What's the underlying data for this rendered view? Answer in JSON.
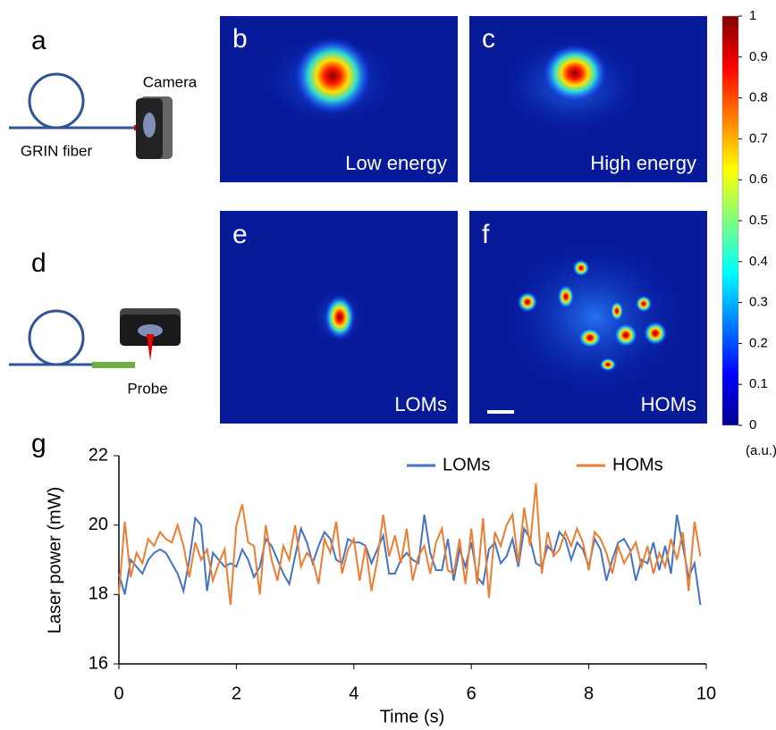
{
  "panels": {
    "a": {
      "label": "a",
      "camera": "Camera",
      "fiber": "GRIN fiber"
    },
    "b": {
      "label": "b",
      "caption": "Low energy"
    },
    "c": {
      "label": "c",
      "caption": "High energy"
    },
    "d": {
      "label": "d",
      "probe": "Probe"
    },
    "e": {
      "label": "e",
      "caption": "LOMs"
    },
    "f": {
      "label": "f",
      "caption": "HOMs"
    }
  },
  "colorbar": {
    "ylim": [
      0,
      1
    ],
    "yticks": [
      0,
      0.1,
      0.2,
      0.3,
      0.4,
      0.5,
      0.6,
      0.7,
      0.8,
      0.9,
      1
    ],
    "unit": "(a.u.)"
  },
  "chart_data": {
    "type": "line",
    "panel_label": "g",
    "x_label": "Time (s)",
    "y_label": "Laser power (mW)",
    "x": [
      0,
      0.1,
      0.2,
      0.3,
      0.4,
      0.5,
      0.6,
      0.7,
      0.8,
      0.9,
      1,
      1.1,
      1.2,
      1.3,
      1.4,
      1.5,
      1.6,
      1.7,
      1.8,
      1.9,
      2,
      2.1,
      2.2,
      2.3,
      2.4,
      2.5,
      2.6,
      2.7,
      2.8,
      2.9,
      3,
      3.1,
      3.2,
      3.3,
      3.4,
      3.5,
      3.6,
      3.7,
      3.8,
      3.9,
      4,
      4.1,
      4.2,
      4.3,
      4.4,
      4.5,
      4.6,
      4.7,
      4.8,
      4.9,
      5,
      5.1,
      5.2,
      5.3,
      5.4,
      5.5,
      5.6,
      5.7,
      5.8,
      5.9,
      6,
      6.1,
      6.2,
      6.3,
      6.4,
      6.5,
      6.6,
      6.7,
      6.8,
      6.9,
      7,
      7.1,
      7.2,
      7.3,
      7.4,
      7.5,
      7.6,
      7.7,
      7.8,
      7.9,
      8,
      8.1,
      8.2,
      8.3,
      8.4,
      8.5,
      8.6,
      8.7,
      8.8,
      8.9,
      9,
      9.1,
      9.2,
      9.3,
      9.4,
      9.5,
      9.6,
      9.7,
      9.8,
      9.9
    ],
    "series": [
      {
        "name": "LOMs",
        "color": "#4472c4",
        "values": [
          18.6,
          18.0,
          19.0,
          18.8,
          18.6,
          19.0,
          19.2,
          19.3,
          19.2,
          18.9,
          18.6,
          18.1,
          19.0,
          20.2,
          20.0,
          18.1,
          19.2,
          19.0,
          18.8,
          18.9,
          18.8,
          19.3,
          19.0,
          18.5,
          18.8,
          19.6,
          19.4,
          19.0,
          18.6,
          18.3,
          19.1,
          19.9,
          19.5,
          18.9,
          19.4,
          19.8,
          19.6,
          19.0,
          18.9,
          19.6,
          19.5,
          19.5,
          19.4,
          18.9,
          19.3,
          19.7,
          18.6,
          18.6,
          19.0,
          19.2,
          19.0,
          18.9,
          20.3,
          19.2,
          18.7,
          18.7,
          19.6,
          18.4,
          19.3,
          18.8,
          19.5,
          18.5,
          18.3,
          19.3,
          19.5,
          18.9,
          19.1,
          19.6,
          18.8,
          19.9,
          19.6,
          18.9,
          18.8,
          19.4,
          19.2,
          19.8,
          19.6,
          19.0,
          19.5,
          19.3,
          18.8,
          19.6,
          19.3,
          18.4,
          19.0,
          19.5,
          19.6,
          19.3,
          18.4,
          19.0,
          18.9,
          19.5,
          18.7,
          19.4,
          18.6,
          20.3,
          19.4,
          18.5,
          18.9,
          17.7
        ]
      },
      {
        "name": "HOMs",
        "color": "#ed7d31",
        "values": [
          18.0,
          20.1,
          18.5,
          19.2,
          18.9,
          19.6,
          19.4,
          19.8,
          19.6,
          19.5,
          20.0,
          19.4,
          18.5,
          19.5,
          19.0,
          19.3,
          18.4,
          18.9,
          19.3,
          17.7,
          20.0,
          20.6,
          19.5,
          19.4,
          18.0,
          20.0,
          19.0,
          18.4,
          19.4,
          19.0,
          20.0,
          18.8,
          19.2,
          19.0,
          18.3,
          19.6,
          19.2,
          20.1,
          18.6,
          19.3,
          19.6,
          18.4,
          19.4,
          18.1,
          19.0,
          20.3,
          19.1,
          19.7,
          18.9,
          19.9,
          18.4,
          19.1,
          19.4,
          18.6,
          19.5,
          19.9,
          18.7,
          18.6,
          19.6,
          18.3,
          19.9,
          18.3,
          20.2,
          17.9,
          19.8,
          19.4,
          20.0,
          20.3,
          18.9,
          20.5,
          19.4,
          21.2,
          18.6,
          19.8,
          19.1,
          19.3,
          19.8,
          19.4,
          19.9,
          19.5,
          18.7,
          19.8,
          19.6,
          19.2,
          18.6,
          19.4,
          18.9,
          19.2,
          19.5,
          18.8,
          19.4,
          18.6,
          19.2,
          18.8,
          19.6,
          19.0,
          19.8,
          18.1,
          20.1,
          19.1
        ]
      }
    ],
    "xlim": [
      0,
      10
    ],
    "xticks": [
      0,
      2,
      4,
      6,
      8,
      10
    ],
    "ylim": [
      16,
      22
    ],
    "yticks": [
      16,
      18,
      20,
      22
    ]
  }
}
